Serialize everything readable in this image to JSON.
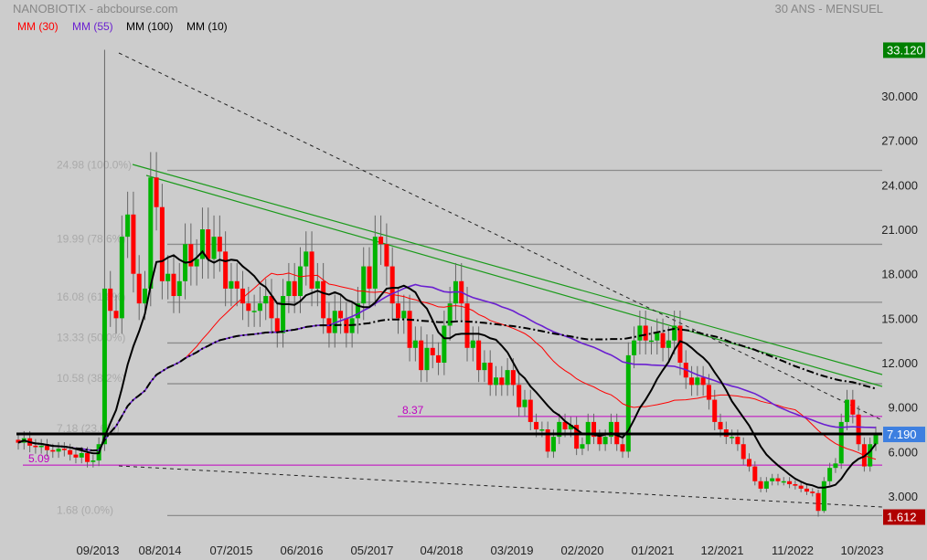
{
  "header": {
    "title": "NANOBIOTIX - abcbourse.com",
    "period": "30 ANS - MENSUEL"
  },
  "legend": [
    {
      "label": "MM (30)",
      "color": "#ff0000"
    },
    {
      "label": "MM (55)",
      "color": "#6a1fd0"
    },
    {
      "label": "MM (100)",
      "color": "#000000"
    },
    {
      "label": "MM (10)",
      "color": "#000000"
    }
  ],
  "chart_data": {
    "type": "candlestick",
    "title": "NANOBIOTIX",
    "ylim": [
      1.2,
      34.5
    ],
    "y_ticks": [
      3,
      6,
      9,
      12,
      15,
      18,
      21,
      24,
      27,
      30
    ],
    "y_tick_labels": [
      "3.000",
      "6.000",
      "9.000",
      "12.000",
      "15.000",
      "18.000",
      "21.000",
      "24.000",
      "27.000",
      "30.000"
    ],
    "x_tick_labels": [
      "09/2013",
      "08/2014",
      "07/2015",
      "06/2016",
      "05/2017",
      "04/2018",
      "03/2019",
      "02/2020",
      "01/2021",
      "12/2021",
      "11/2022",
      "10/2023"
    ],
    "price_tags": {
      "high": "33.120",
      "last": "7.190",
      "low": "1.612"
    },
    "closes": [
      6.6,
      6.9,
      6.4,
      6.3,
      6.4,
      6.1,
      6.0,
      6.2,
      6.1,
      5.8,
      5.6,
      5.9,
      5.3,
      5.4,
      6.5,
      17,
      15.5,
      15,
      20.5,
      22,
      18,
      16,
      17,
      24.5,
      22.5,
      17.5,
      18,
      16.5,
      17.5,
      20,
      18.5,
      19,
      21,
      19,
      20.5,
      19.5,
      17,
      17.5,
      17,
      16,
      15.5,
      15.5,
      16,
      16.5,
      15,
      14,
      16.5,
      17.5,
      16.5,
      18.5,
      19.5,
      17,
      17.5,
      15,
      14,
      15.5,
      15,
      14,
      15,
      16,
      18.5,
      17,
      20.5,
      20,
      18.5,
      16,
      15,
      15.5,
      13,
      13.5,
      11.5,
      13,
      12.5,
      12,
      14.5,
      16,
      17.5,
      16,
      13,
      13.5,
      11.5,
      12,
      10.5,
      11,
      10.5,
      11.5,
      10.5,
      9,
      9.5,
      8,
      7.5,
      7.5,
      6,
      7,
      8,
      7.5,
      7.8,
      6.2,
      6.5,
      8,
      7,
      6.5,
      7,
      8,
      6.5,
      6,
      12.5,
      13.5,
      14.5,
      13.5,
      13.5,
      14,
      13,
      13.5,
      14.5,
      12,
      11,
      10.5,
      11,
      10.5,
      9.5,
      8,
      7.5,
      7,
      7,
      6.5,
      5.5,
      5,
      4,
      3.5,
      4,
      4.2,
      4,
      4,
      3.8,
      3.7,
      3.5,
      3.3,
      3.2,
      2.0,
      4.0,
      4.9,
      5.2,
      8.0,
      9.5,
      8.5,
      6.5,
      5.0,
      6.5,
      7.19
    ],
    "moving_averages": [
      30,
      55,
      100,
      10
    ],
    "fibonacci": [
      {
        "value": 24.98,
        "label": "24.98 (100.0%)"
      },
      {
        "value": 19.99,
        "label": "19.99 (78.6%)"
      },
      {
        "value": 16.08,
        "label": "16.08 (61.8%)"
      },
      {
        "value": 13.33,
        "label": "13.33 (50.0%)"
      },
      {
        "value": 10.58,
        "label": "10.58 (38.2%)"
      },
      {
        "value": 7.18,
        "label": "7.18 (23.6%)"
      },
      {
        "value": 1.68,
        "label": "1.68 (0.0%)"
      }
    ],
    "levels": [
      {
        "value": 8.37,
        "label": "8.37"
      },
      {
        "value": 5.09,
        "label": "5.09"
      },
      {
        "value": 7.19,
        "label": ""
      }
    ]
  }
}
